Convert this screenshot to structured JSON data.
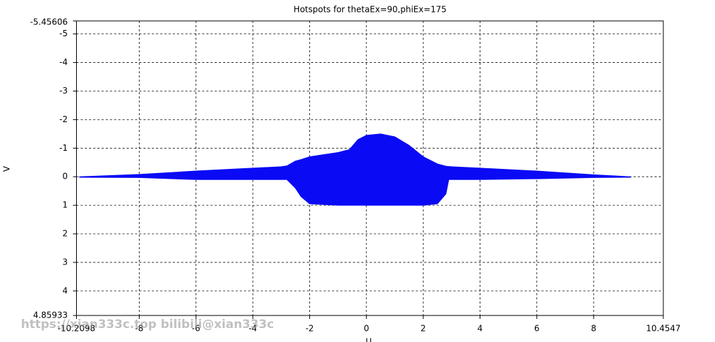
{
  "chart_data": {
    "type": "area",
    "title": "Hotspots for thetaEx=90,phiEx=175",
    "xlabel": "U",
    "ylabel": "V",
    "watermark": "https://xian333c.top bilibili@xian333c",
    "x": [
      -10.1,
      -8,
      -6,
      -4,
      -3,
      -2.8,
      -2.5,
      -2.3,
      -2,
      -1,
      -0.6,
      -0.3,
      0,
      0.5,
      1,
      1.5,
      2,
      2.5,
      2.8,
      2.9,
      3,
      4,
      6,
      8,
      9.3
    ],
    "series": [
      {
        "color": "#0a0af5",
        "values": [
          0,
          -0.08,
          -0.2,
          -0.3,
          -0.35,
          -0.38,
          -0.55,
          -0.6,
          -0.7,
          -0.85,
          -0.95,
          -1.3,
          -1.45,
          -1.5,
          -1.4,
          -1.1,
          -0.7,
          -0.45,
          -0.37,
          -0.36,
          -0.35,
          -0.3,
          -0.2,
          -0.07,
          0
        ]
      },
      {
        "color": "#0a0af5",
        "values": [
          0.02,
          0.03,
          0.1,
          0.1,
          0.1,
          0.1,
          0.4,
          0.7,
          0.95,
          1,
          1,
          1,
          1,
          1,
          1,
          1,
          1,
          0.95,
          0.6,
          0.1,
          0.1,
          0.1,
          0.07,
          0.03,
          0.02
        ]
      }
    ],
    "xlim": [
      -10.2098,
      10.4547
    ],
    "xticks": [
      -10.2098,
      -8,
      -6,
      -4,
      -2,
      0,
      2,
      4,
      6,
      8,
      10.4547
    ],
    "ylim": [
      -5.45606,
      4.85933
    ],
    "invert_y": true,
    "yticks": [
      -5.45606,
      -5,
      -4,
      -3,
      -2,
      -1,
      0,
      1,
      2,
      3,
      4,
      4.85933
    ],
    "grid": true
  }
}
